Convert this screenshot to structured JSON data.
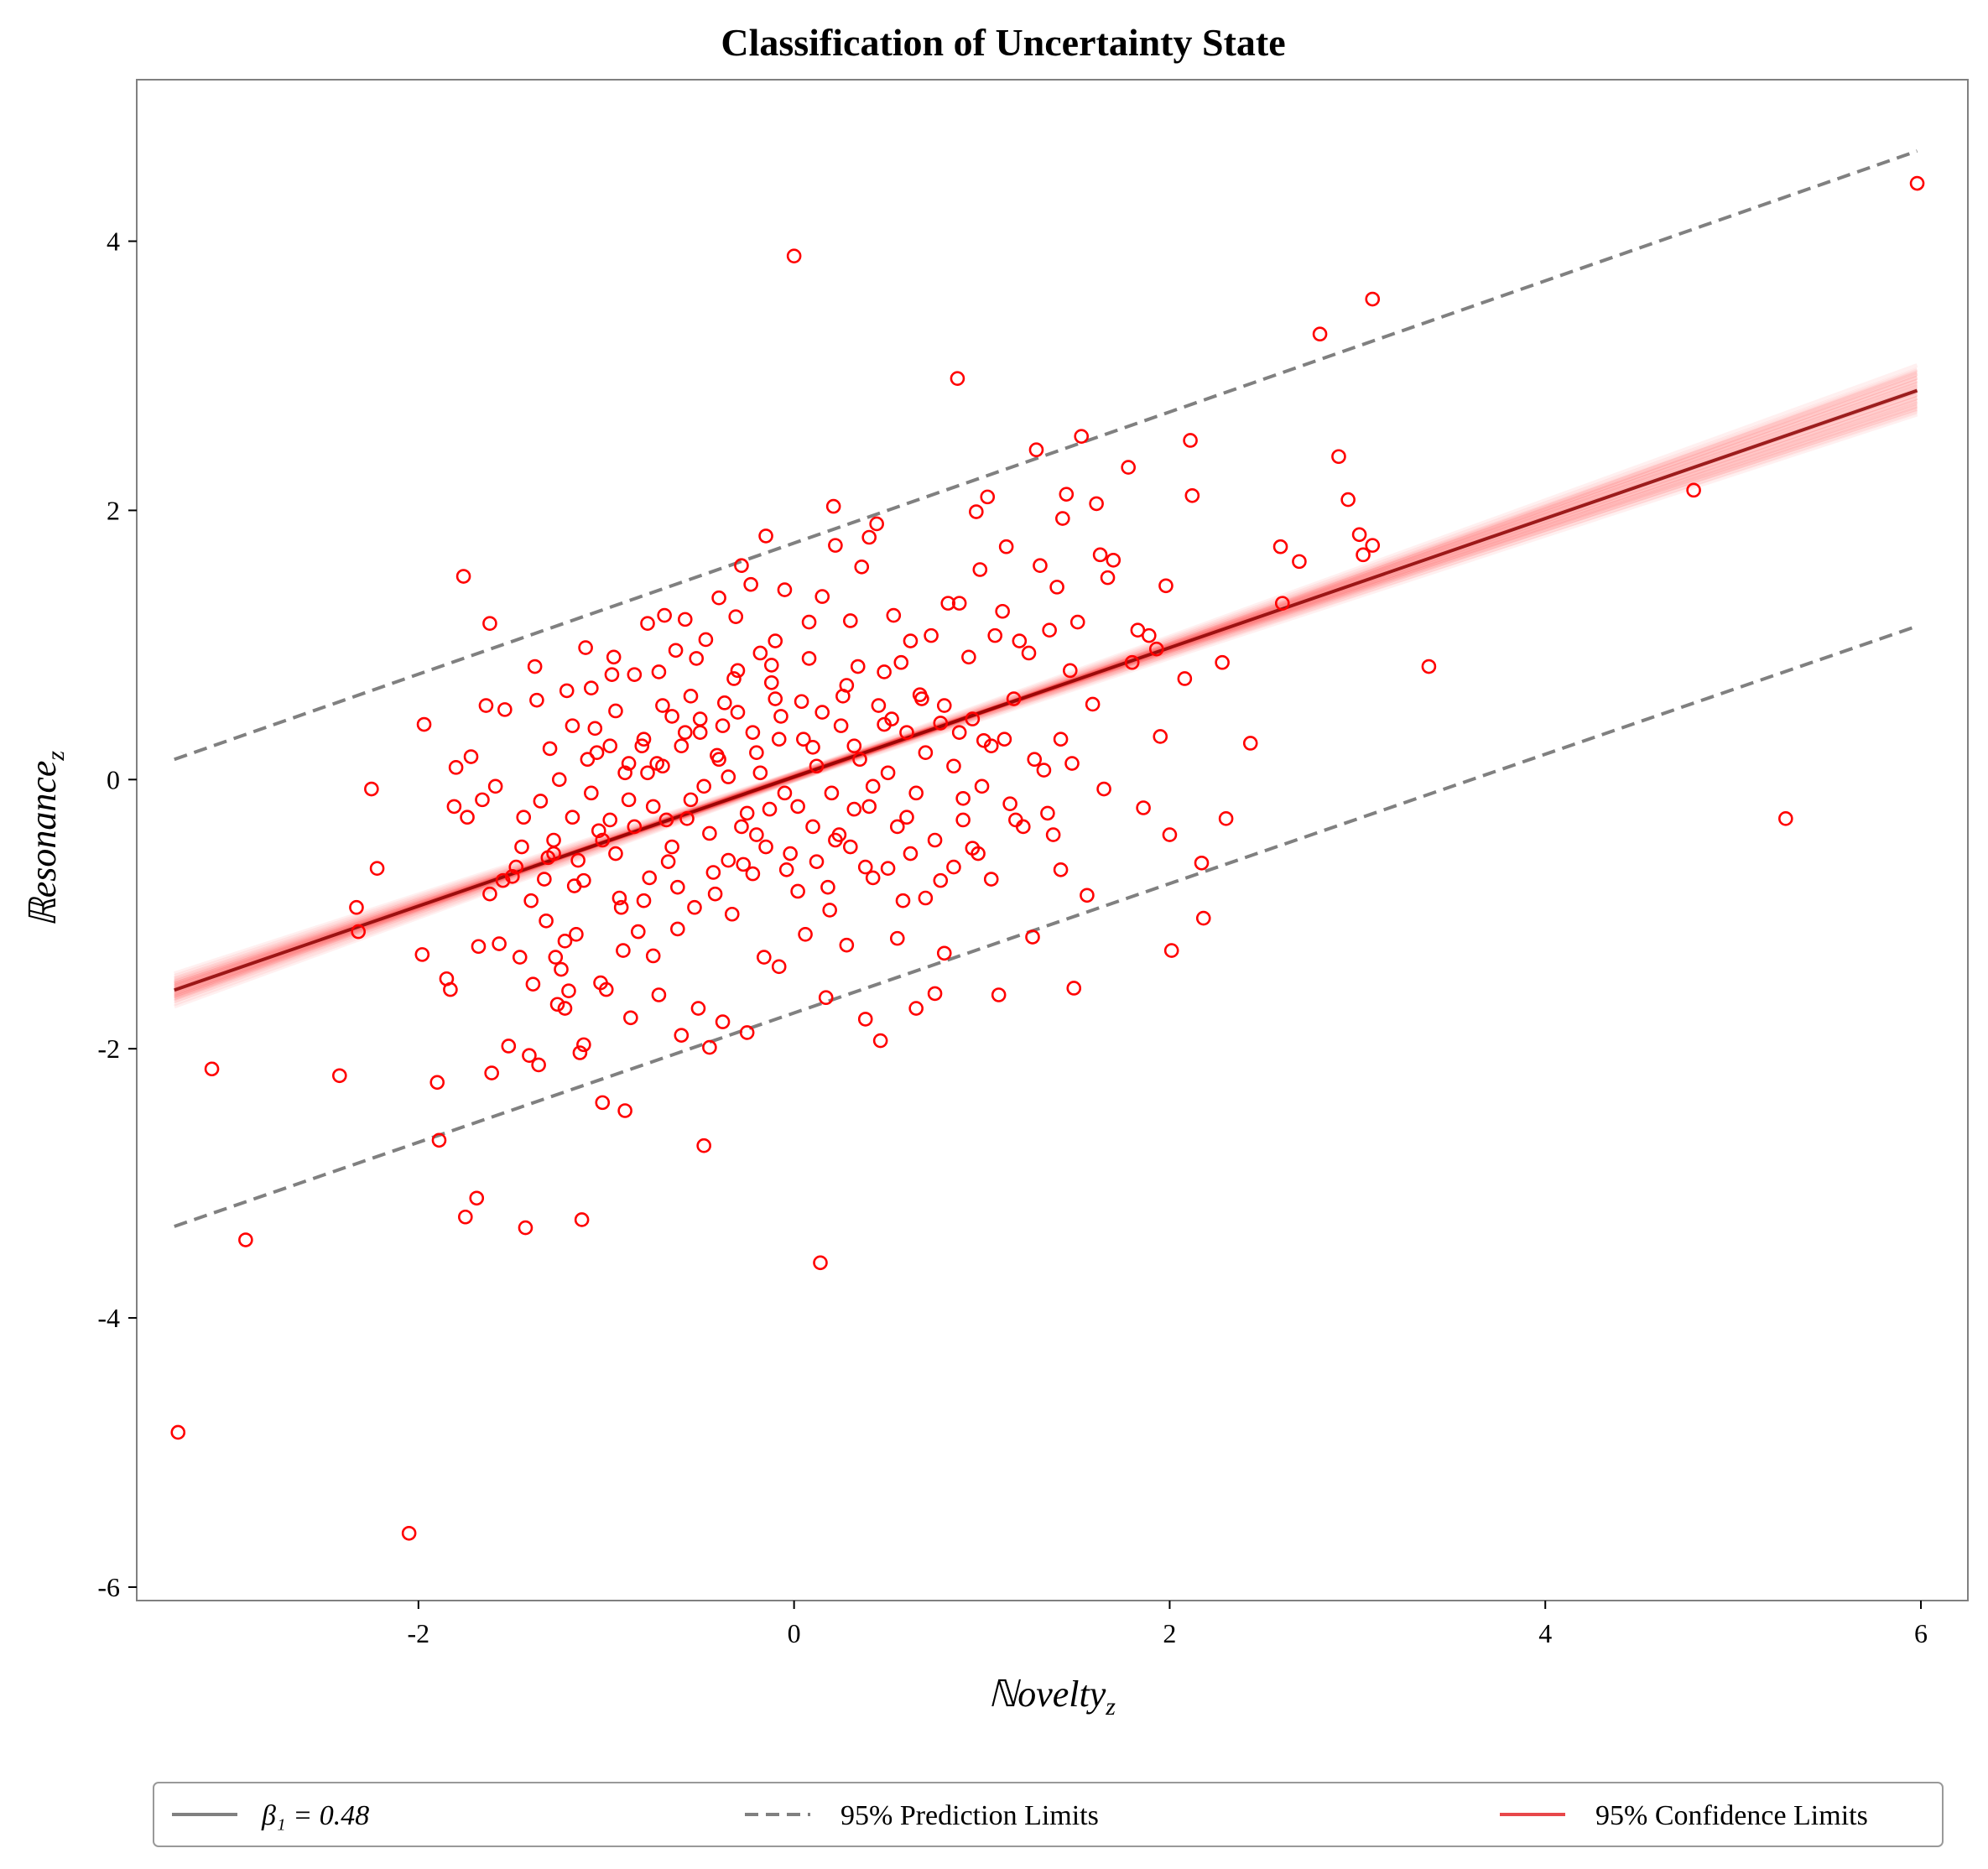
{
  "chart_data": {
    "type": "scatter",
    "title": "Classification of Uncertainty State",
    "xlabel": "ℕovelty",
    "xlabel_sub": "z",
    "ylabel": "ℝesonance",
    "ylabel_sub": "z",
    "xlim": [
      -3.5,
      6.25
    ],
    "ylim": [
      -6.1,
      5.2
    ],
    "xticks": [
      -2,
      0,
      2,
      4,
      6
    ],
    "xtick_labels": [
      "-2",
      "0",
      "2",
      "4",
      "6"
    ],
    "yticks": [
      -6,
      -4,
      -2,
      0,
      2,
      4
    ],
    "ytick_labels": [
      "-6",
      "-4",
      "-2",
      "0",
      "2",
      "4"
    ],
    "grid": false,
    "legend_position": "bottom",
    "regression": {
      "beta1_label": "β₁ = 0.48",
      "intercept": 0.02,
      "slope": 0.48,
      "x_range": [
        -3.3,
        5.98
      ]
    },
    "prediction_limits_label": "95% Prediction Limits",
    "prediction_limits": {
      "upper": [
        [
          -3.3,
          0.15
        ],
        [
          5.98,
          4.67
        ]
      ],
      "lower": [
        [
          -3.3,
          -3.32
        ],
        [
          5.98,
          1.14
        ]
      ]
    },
    "confidence_limits_label": "95% Confidence Limits",
    "colors": {
      "points": "#ff0000",
      "regression_line": "#8b0000",
      "confidence_band": "#ff0000",
      "prediction_limits": "#808080",
      "legend_beta_line": "#808080"
    },
    "points_note": "outlying points are listed individually; the dense central cloud is listed as well",
    "points": [
      [
        -3.28,
        -4.85
      ],
      [
        -3.1,
        -2.15
      ],
      [
        -2.92,
        -3.42
      ],
      [
        -2.42,
        -2.2
      ],
      [
        -2.33,
        -0.95
      ],
      [
        -2.32,
        -1.13
      ],
      [
        -2.25,
        -0.07
      ],
      [
        -2.22,
        -0.66
      ],
      [
        -2.05,
        -5.6
      ],
      [
        -1.98,
        -1.3
      ],
      [
        -1.97,
        0.41
      ],
      [
        -1.9,
        -2.25
      ],
      [
        -1.89,
        -2.68
      ],
      [
        -1.85,
        -1.48
      ],
      [
        -1.83,
        -1.56
      ],
      [
        -1.81,
        -0.2
      ],
      [
        -1.8,
        0.09
      ],
      [
        -1.76,
        1.51
      ],
      [
        -1.75,
        -3.25
      ],
      [
        -1.74,
        -0.28
      ],
      [
        -1.72,
        0.17
      ],
      [
        -1.69,
        -3.11
      ],
      [
        -1.68,
        -1.24
      ],
      [
        -1.66,
        -0.15
      ],
      [
        -1.64,
        0.55
      ],
      [
        -1.62,
        1.16
      ],
      [
        -1.61,
        -2.18
      ],
      [
        -1.59,
        -0.05
      ],
      [
        -1.57,
        -1.22
      ],
      [
        -1.54,
        0.52
      ],
      [
        -1.52,
        -1.98
      ],
      [
        -1.5,
        -0.72
      ],
      [
        -1.48,
        -0.65
      ],
      [
        -1.46,
        -1.32
      ],
      [
        -1.44,
        -0.28
      ],
      [
        -1.43,
        -3.33
      ],
      [
        -1.41,
        -2.05
      ],
      [
        -1.39,
        -1.52
      ],
      [
        -1.38,
        0.84
      ],
      [
        -1.37,
        0.59
      ],
      [
        -1.36,
        -2.12
      ],
      [
        -1.35,
        -0.16
      ],
      [
        -1.33,
        -0.74
      ],
      [
        -1.31,
        -0.58
      ],
      [
        -1.3,
        0.23
      ],
      [
        -1.28,
        -0.45
      ],
      [
        -1.27,
        -1.32
      ],
      [
        -1.26,
        -1.67
      ],
      [
        -1.24,
        -1.41
      ],
      [
        -1.22,
        -1.7
      ],
      [
        -1.21,
        0.66
      ],
      [
        -1.2,
        -1.57
      ],
      [
        -1.18,
        -0.28
      ],
      [
        -1.17,
        -0.79
      ],
      [
        -1.16,
        -1.15
      ],
      [
        -1.14,
        -2.03
      ],
      [
        -1.13,
        -3.27
      ],
      [
        -1.12,
        -1.97
      ],
      [
        -1.11,
        0.98
      ],
      [
        -1.1,
        0.15
      ],
      [
        -1.08,
        0.68
      ],
      [
        -1.06,
        0.38
      ],
      [
        -1.04,
        -0.38
      ],
      [
        -1.03,
        -1.51
      ],
      [
        -1.02,
        -2.4
      ],
      [
        -1.0,
        -1.56
      ],
      [
        -0.98,
        0.25
      ],
      [
        -0.97,
        0.78
      ],
      [
        -0.96,
        0.91
      ],
      [
        -0.95,
        0.51
      ],
      [
        -0.93,
        -0.88
      ],
      [
        -0.91,
        -1.27
      ],
      [
        -0.9,
        -2.46
      ],
      [
        -0.88,
        0.12
      ],
      [
        -0.87,
        -1.77
      ],
      [
        -0.85,
        0.78
      ],
      [
        -0.83,
        -1.13
      ],
      [
        -0.81,
        0.25
      ],
      [
        -0.8,
        -0.9
      ],
      [
        -0.78,
        1.16
      ],
      [
        -0.77,
        -0.73
      ],
      [
        -0.75,
        -1.31
      ],
      [
        -0.73,
        0.12
      ],
      [
        -0.72,
        -1.6
      ],
      [
        -0.7,
        0.55
      ],
      [
        -0.69,
        1.22
      ],
      [
        -0.67,
        -0.61
      ],
      [
        -0.65,
        0.47
      ],
      [
        -0.63,
        0.96
      ],
      [
        -0.62,
        -1.11
      ],
      [
        -0.6,
        -1.9
      ],
      [
        -0.58,
        1.19
      ],
      [
        -0.57,
        -0.29
      ],
      [
        -0.55,
        0.62
      ],
      [
        -0.53,
        -0.95
      ],
      [
        -0.51,
        -1.7
      ],
      [
        -0.5,
        0.35
      ],
      [
        -0.48,
        -2.72
      ],
      [
        -0.47,
        1.04
      ],
      [
        -0.45,
        -1.99
      ],
      [
        -0.43,
        -0.69
      ],
      [
        -0.41,
        0.18
      ],
      [
        -0.4,
        1.35
      ],
      [
        -0.38,
        -1.8
      ],
      [
        -0.37,
        0.57
      ],
      [
        -0.35,
        0.02
      ],
      [
        -0.33,
        -1.0
      ],
      [
        -0.31,
        1.21
      ],
      [
        -0.3,
        0.81
      ],
      [
        -0.28,
        1.59
      ],
      [
        -0.27,
        -0.63
      ],
      [
        -0.25,
        -1.88
      ],
      [
        -0.23,
        1.45
      ],
      [
        -0.22,
        0.35
      ],
      [
        -0.2,
        -0.41
      ],
      [
        -0.18,
        0.94
      ],
      [
        -0.16,
        -1.32
      ],
      [
        -0.15,
        1.81
      ],
      [
        -0.13,
        -0.22
      ],
      [
        -0.12,
        0.72
      ],
      [
        -0.1,
        1.03
      ],
      [
        -0.08,
        -1.39
      ],
      [
        -0.07,
        0.47
      ],
      [
        -0.05,
        1.41
      ],
      [
        -0.04,
        -0.67
      ],
      [
        0.0,
        3.89
      ],
      [
        0.02,
        -0.83
      ],
      [
        0.04,
        0.58
      ],
      [
        0.06,
        -1.15
      ],
      [
        0.08,
        1.17
      ],
      [
        0.1,
        0.24
      ],
      [
        0.12,
        -0.61
      ],
      [
        0.14,
        -3.59
      ],
      [
        0.15,
        1.36
      ],
      [
        0.17,
        -1.62
      ],
      [
        0.19,
        -0.97
      ],
      [
        0.21,
        2.03
      ],
      [
        0.22,
        1.74
      ],
      [
        0.24,
        -0.41
      ],
      [
        0.26,
        0.62
      ],
      [
        0.28,
        -1.23
      ],
      [
        0.3,
        1.18
      ],
      [
        0.32,
        -0.22
      ],
      [
        0.34,
        0.84
      ],
      [
        0.36,
        1.58
      ],
      [
        0.38,
        -1.78
      ],
      [
        0.4,
        1.8
      ],
      [
        0.42,
        -0.73
      ],
      [
        0.44,
        1.9
      ],
      [
        0.46,
        -1.94
      ],
      [
        0.48,
        0.41
      ],
      [
        0.5,
        -0.66
      ],
      [
        0.53,
        1.22
      ],
      [
        0.55,
        -1.18
      ],
      [
        0.57,
        0.87
      ],
      [
        0.6,
        -0.28
      ],
      [
        0.62,
        1.03
      ],
      [
        0.65,
        -1.7
      ],
      [
        0.67,
        0.63
      ],
      [
        0.7,
        -0.88
      ],
      [
        0.73,
        1.07
      ],
      [
        0.75,
        -1.59
      ],
      [
        0.78,
        0.42
      ],
      [
        0.8,
        -1.29
      ],
      [
        0.82,
        1.31
      ],
      [
        0.85,
        -0.65
      ],
      [
        0.87,
        2.98
      ],
      [
        0.88,
        1.31
      ],
      [
        0.9,
        -0.14
      ],
      [
        0.93,
        0.91
      ],
      [
        0.95,
        -0.51
      ],
      [
        0.97,
        1.99
      ],
      [
        0.99,
        1.56
      ],
      [
        1.01,
        0.29
      ],
      [
        1.03,
        2.1
      ],
      [
        1.05,
        -0.74
      ],
      [
        1.07,
        1.07
      ],
      [
        1.09,
        -1.6
      ],
      [
        1.11,
        1.25
      ],
      [
        1.13,
        1.73
      ],
      [
        1.15,
        -0.18
      ],
      [
        1.17,
        0.6
      ],
      [
        1.2,
        1.03
      ],
      [
        1.22,
        -0.35
      ],
      [
        1.25,
        0.94
      ],
      [
        1.27,
        -1.17
      ],
      [
        1.29,
        2.45
      ],
      [
        1.31,
        1.59
      ],
      [
        1.33,
        0.07
      ],
      [
        1.36,
        1.11
      ],
      [
        1.38,
        -0.41
      ],
      [
        1.4,
        1.43
      ],
      [
        1.42,
        -0.67
      ],
      [
        1.43,
        1.94
      ],
      [
        1.45,
        2.12
      ],
      [
        1.47,
        0.81
      ],
      [
        1.49,
        -1.55
      ],
      [
        1.51,
        1.17
      ],
      [
        1.53,
        2.55
      ],
      [
        1.56,
        -0.86
      ],
      [
        1.59,
        0.56
      ],
      [
        1.61,
        2.05
      ],
      [
        1.63,
        1.67
      ],
      [
        1.65,
        -0.07
      ],
      [
        1.67,
        1.5
      ],
      [
        1.7,
        1.63
      ],
      [
        1.78,
        2.32
      ],
      [
        1.8,
        0.87
      ],
      [
        1.83,
        1.11
      ],
      [
        1.86,
        -0.21
      ],
      [
        1.89,
        1.07
      ],
      [
        1.93,
        0.97
      ],
      [
        1.95,
        0.32
      ],
      [
        1.98,
        1.44
      ],
      [
        2.0,
        -0.41
      ],
      [
        2.01,
        -1.27
      ],
      [
        2.08,
        0.75
      ],
      [
        2.11,
        2.52
      ],
      [
        2.12,
        2.11
      ],
      [
        2.17,
        -0.62
      ],
      [
        2.18,
        -1.03
      ],
      [
        2.28,
        0.87
      ],
      [
        2.3,
        -0.29
      ],
      [
        2.43,
        0.27
      ],
      [
        2.59,
        1.73
      ],
      [
        2.6,
        1.31
      ],
      [
        2.69,
        1.62
      ],
      [
        2.8,
        3.31
      ],
      [
        2.9,
        2.4
      ],
      [
        2.95,
        2.08
      ],
      [
        3.01,
        1.82
      ],
      [
        3.03,
        1.67
      ],
      [
        3.08,
        1.74
      ],
      [
        3.08,
        3.57
      ],
      [
        3.38,
        0.84
      ],
      [
        4.79,
        2.15
      ],
      [
        5.28,
        -0.29
      ],
      [
        5.98,
        4.43
      ],
      [
        -0.95,
        -0.55
      ],
      [
        -0.9,
        0.05
      ],
      [
        -0.85,
        -0.35
      ],
      [
        -0.8,
        0.3
      ],
      [
        -0.75,
        -0.2
      ],
      [
        -0.7,
        0.1
      ],
      [
        -0.65,
        -0.5
      ],
      [
        -0.6,
        0.25
      ],
      [
        -0.55,
        -0.15
      ],
      [
        -0.5,
        0.45
      ],
      [
        -0.45,
        -0.4
      ],
      [
        -0.4,
        0.15
      ],
      [
        -0.35,
        -0.6
      ],
      [
        -0.3,
        0.5
      ],
      [
        -0.25,
        -0.25
      ],
      [
        -0.2,
        0.2
      ],
      [
        -0.15,
        -0.5
      ],
      [
        -0.1,
        0.6
      ],
      [
        -0.05,
        -0.1
      ],
      [
        0.05,
        0.3
      ],
      [
        0.1,
        -0.35
      ],
      [
        0.15,
        0.5
      ],
      [
        0.2,
        -0.1
      ],
      [
        0.25,
        0.4
      ],
      [
        0.3,
        -0.5
      ],
      [
        0.35,
        0.15
      ],
      [
        0.4,
        -0.2
      ],
      [
        0.45,
        0.55
      ],
      [
        0.5,
        0.05
      ],
      [
        0.55,
        -0.35
      ],
      [
        0.6,
        0.35
      ],
      [
        0.65,
        -0.1
      ],
      [
        0.7,
        0.2
      ],
      [
        0.75,
        -0.45
      ],
      [
        0.8,
        0.55
      ],
      [
        0.85,
        0.1
      ],
      [
        0.9,
        -0.3
      ],
      [
        0.95,
        0.45
      ],
      [
        1.0,
        -0.05
      ],
      [
        1.05,
        0.25
      ],
      [
        -0.88,
        -0.15
      ],
      [
        -0.78,
        0.05
      ],
      [
        -0.68,
        -0.3
      ],
      [
        -0.58,
        0.35
      ],
      [
        -0.48,
        -0.05
      ],
      [
        -0.38,
        0.4
      ],
      [
        -0.28,
        -0.35
      ],
      [
        -0.18,
        0.05
      ],
      [
        -0.08,
        0.3
      ],
      [
        0.02,
        -0.2
      ],
      [
        0.12,
        0.1
      ],
      [
        0.22,
        -0.45
      ],
      [
        0.32,
        0.25
      ],
      [
        0.42,
        -0.05
      ],
      [
        0.52,
        0.45
      ],
      [
        0.62,
        -0.55
      ],
      [
        -1.25,
        0.0
      ],
      [
        -1.15,
        -0.6
      ],
      [
        -1.05,
        0.2
      ],
      [
        -0.98,
        -0.3
      ],
      [
        -1.18,
        0.4
      ],
      [
        -1.08,
        -0.1
      ],
      [
        -0.72,
        0.8
      ],
      [
        -0.62,
        -0.8
      ],
      [
        -0.52,
        0.9
      ],
      [
        -0.42,
        -0.85
      ],
      [
        -0.32,
        0.75
      ],
      [
        -0.22,
        -0.7
      ],
      [
        -0.12,
        0.85
      ],
      [
        -0.02,
        -0.55
      ],
      [
        0.08,
        0.9
      ],
      [
        0.18,
        -0.8
      ],
      [
        0.28,
        0.7
      ],
      [
        0.38,
        -0.65
      ],
      [
        0.48,
        0.8
      ],
      [
        0.58,
        -0.9
      ],
      [
        0.68,
        0.6
      ],
      [
        0.78,
        -0.75
      ],
      [
        0.88,
        0.35
      ],
      [
        0.98,
        -0.55
      ],
      [
        1.12,
        0.3
      ],
      [
        1.18,
        -0.3
      ],
      [
        1.28,
        0.15
      ],
      [
        1.35,
        -0.25
      ],
      [
        1.42,
        0.3
      ],
      [
        1.48,
        0.12
      ],
      [
        -1.45,
        -0.5
      ],
      [
        -1.55,
        -0.75
      ],
      [
        -1.62,
        -0.85
      ],
      [
        -1.4,
        -0.9
      ],
      [
        -1.32,
        -1.05
      ],
      [
        -1.22,
        -1.2
      ],
      [
        -1.28,
        -0.55
      ],
      [
        -1.12,
        -0.75
      ],
      [
        -1.02,
        -0.45
      ],
      [
        -0.92,
        -0.95
      ]
    ]
  }
}
